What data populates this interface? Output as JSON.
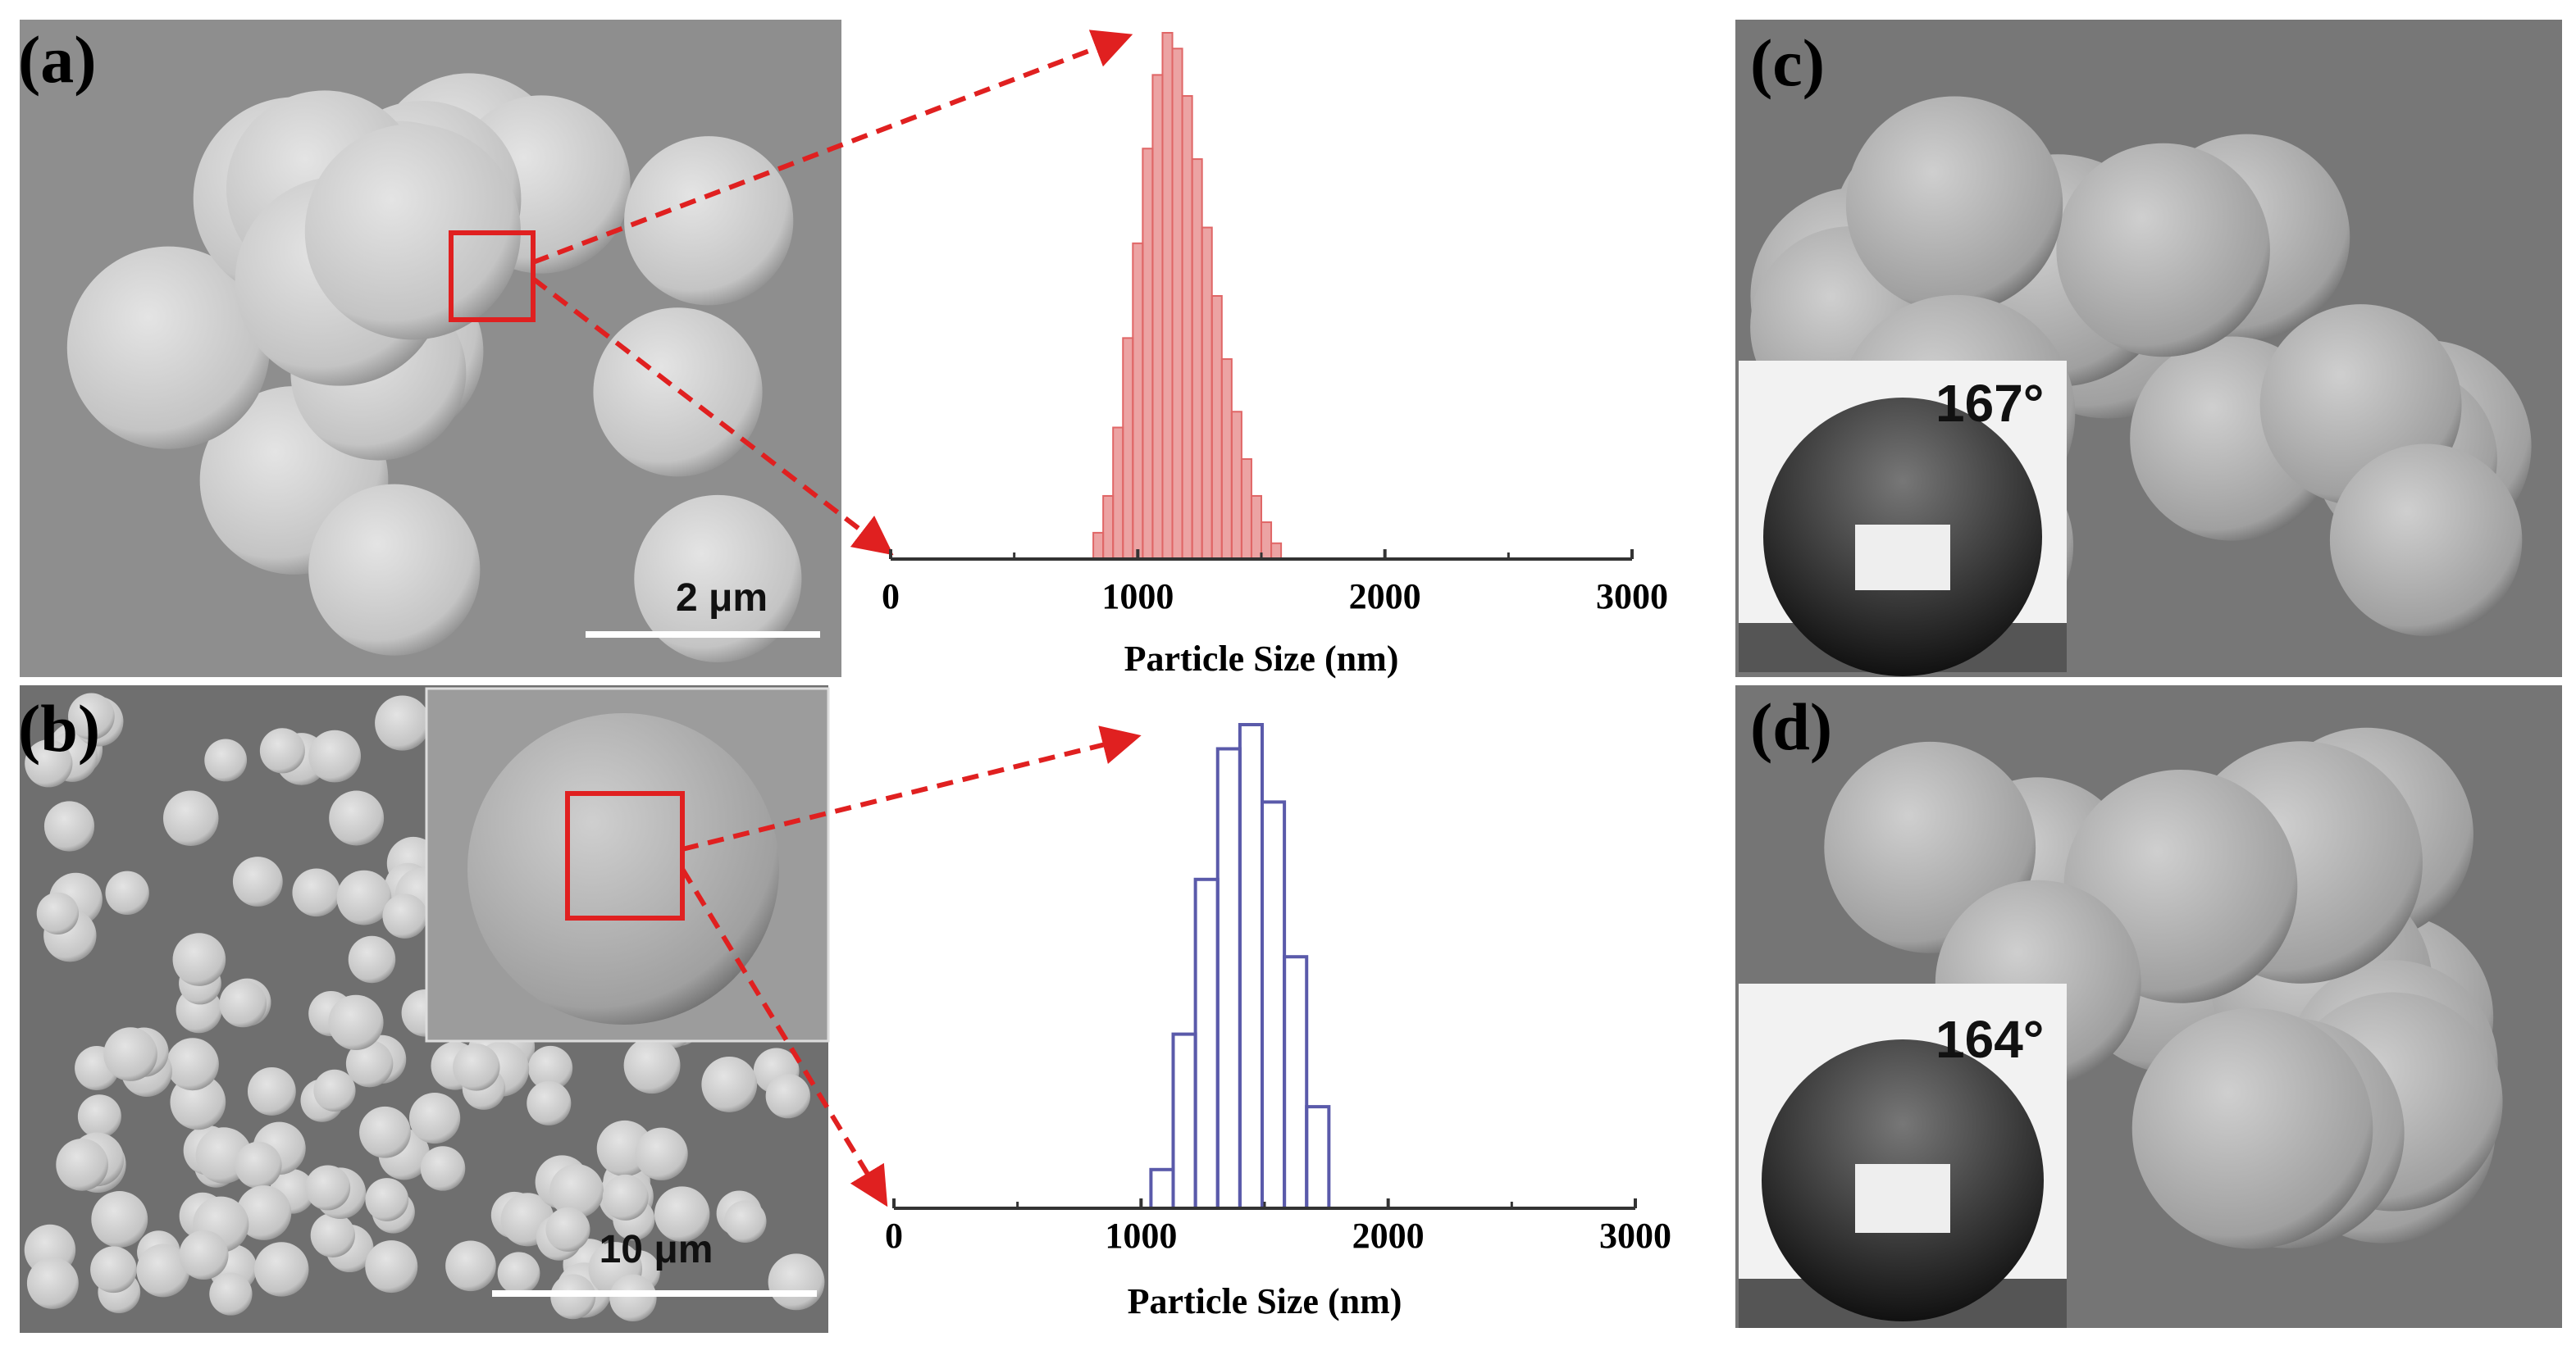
{
  "panels": {
    "a": {
      "label": "(a)",
      "scale_bar": "2 μm"
    },
    "b": {
      "label": "(b)",
      "scale_bar": "10 μm"
    },
    "c": {
      "label": "(c)",
      "contact_angle": "167°"
    },
    "d": {
      "label": "(d)",
      "contact_angle": "164°"
    }
  },
  "chart_data": [
    {
      "type": "histogram",
      "xlabel": "Particle Size (nm)",
      "color": "#e06666",
      "filled": true,
      "bins": [
        820,
        860,
        900,
        940,
        980,
        1020,
        1060,
        1100,
        1140,
        1180,
        1220,
        1260,
        1300,
        1340,
        1380,
        1420,
        1460,
        1500,
        1540,
        1580
      ],
      "values": [
        5,
        12,
        25,
        42,
        60,
        78,
        92,
        100,
        97,
        88,
        76,
        63,
        50,
        38,
        28,
        19,
        12,
        7,
        3
      ],
      "xlim": [
        0,
        3000
      ],
      "xticks": [
        0,
        1000,
        2000,
        3000
      ],
      "xminorticks": [
        500,
        1500,
        2500
      ],
      "ylim": [
        0,
        100
      ]
    },
    {
      "type": "histogram",
      "xlabel": "Particle Size (nm)",
      "color": "#5a5aaa",
      "filled": false,
      "bins": [
        1040,
        1130,
        1220,
        1310,
        1400,
        1490,
        1580,
        1670,
        1760
      ],
      "values": [
        8,
        36,
        68,
        95,
        100,
        84,
        52,
        21
      ],
      "xlim": [
        0,
        3000
      ],
      "xticks": [
        0,
        1000,
        2000,
        3000
      ],
      "xminorticks": [
        500,
        1500,
        2500
      ],
      "ylim": [
        0,
        100
      ]
    }
  ]
}
